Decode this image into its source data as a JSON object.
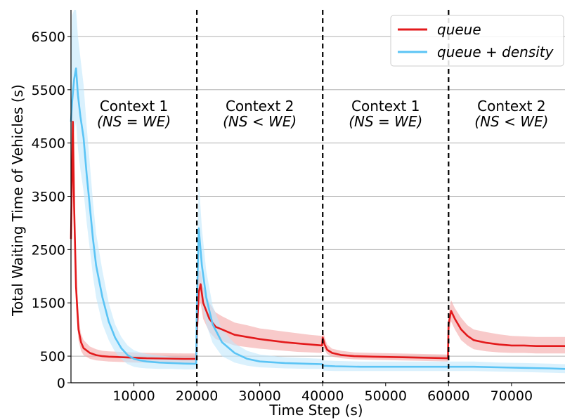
{
  "chart_data": {
    "type": "line",
    "xlabel": "Time Step (s)",
    "ylabel": "Total Waiting Time of Vehicles (s)",
    "xlim": [
      0,
      78500
    ],
    "ylim": [
      0,
      7000
    ],
    "x_ticks": [
      10000,
      20000,
      30000,
      40000,
      50000,
      60000,
      70000
    ],
    "y_ticks": [
      0,
      500,
      1500,
      2500,
      3500,
      4500,
      5500,
      6500
    ],
    "grid": "horizontal",
    "legend_position": "top-right",
    "context_boundaries": [
      20000,
      40000,
      60000
    ],
    "contexts": [
      {
        "name": "Context 1",
        "relation": "(NS = WE)",
        "x_center": 10000
      },
      {
        "name": "Context 2",
        "relation": "(NS < WE)",
        "x_center": 30000
      },
      {
        "name": "Context 1",
        "relation": "(NS = WE)",
        "x_center": 50000
      },
      {
        "name": "Context 2",
        "relation": "(NS < WE)",
        "x_center": 70000
      }
    ],
    "series": [
      {
        "name": "queue",
        "color": "#e31a1c",
        "band_color": "#f4a6a6",
        "x": [
          0,
          300,
          500,
          800,
          1200,
          1600,
          2000,
          3000,
          4000,
          5000,
          6000,
          8000,
          10000,
          12000,
          15000,
          18000,
          19900,
          20000,
          20300,
          20600,
          21000,
          22000,
          23000,
          24000,
          26000,
          28000,
          30000,
          32000,
          34000,
          36000,
          38000,
          39900,
          40000,
          40300,
          40700,
          41500,
          43000,
          45000,
          48000,
          52000,
          56000,
          59900,
          60000,
          60400,
          61000,
          62000,
          63000,
          64000,
          66000,
          68000,
          70000,
          72000,
          74000,
          76000,
          78500
        ],
        "values": [
          2700,
          4900,
          3300,
          1800,
          1000,
          760,
          650,
          560,
          520,
          500,
          490,
          480,
          470,
          460,
          455,
          450,
          450,
          900,
          1700,
          1850,
          1500,
          1200,
          1050,
          1000,
          900,
          860,
          820,
          790,
          760,
          740,
          720,
          700,
          850,
          720,
          620,
          560,
          520,
          500,
          490,
          480,
          470,
          460,
          1100,
          1350,
          1200,
          1000,
          880,
          800,
          750,
          720,
          700,
          700,
          690,
          690,
          690
        ],
        "band_low": [
          2000,
          4000,
          2700,
          1400,
          800,
          600,
          520,
          450,
          420,
          410,
          400,
          390,
          380,
          380,
          375,
          370,
          370,
          600,
          1400,
          1500,
          1200,
          950,
          820,
          780,
          700,
          670,
          640,
          620,
          600,
          580,
          570,
          560,
          700,
          620,
          540,
          490,
          460,
          440,
          430,
          420,
          410,
          400,
          900,
          1150,
          1000,
          800,
          700,
          630,
          590,
          570,
          560,
          560,
          550,
          550,
          550
        ],
        "band_high": [
          3400,
          5300,
          4000,
          2200,
          1200,
          920,
          800,
          680,
          630,
          600,
          590,
          580,
          570,
          560,
          555,
          550,
          550,
          1200,
          2100,
          2100,
          1800,
          1500,
          1320,
          1250,
          1130,
          1080,
          1020,
          990,
          960,
          930,
          900,
          880,
          1000,
          860,
          720,
          640,
          600,
          570,
          560,
          550,
          540,
          530,
          1300,
          1550,
          1400,
          1220,
          1080,
          1000,
          950,
          910,
          880,
          870,
          860,
          860,
          860
        ]
      },
      {
        "name": "queue + density",
        "color": "#5bc4f5",
        "band_color": "#c2e8fb",
        "x": [
          0,
          200,
          500,
          800,
          1100,
          1500,
          2000,
          2500,
          3000,
          3500,
          4000,
          5000,
          6000,
          7000,
          8000,
          9000,
          10000,
          11000,
          12000,
          14000,
          16000,
          18000,
          19900,
          20000,
          20300,
          20800,
          21500,
          22500,
          24000,
          26000,
          28000,
          30000,
          34000,
          38000,
          39900,
          40000,
          42000,
          46000,
          50000,
          55000,
          59900,
          60000,
          64000,
          68000,
          72000,
          76000,
          78500
        ],
        "values": [
          4900,
          5300,
          5700,
          5900,
          5400,
          5000,
          4600,
          3900,
          3300,
          2700,
          2200,
          1600,
          1150,
          850,
          650,
          520,
          450,
          420,
          400,
          380,
          370,
          360,
          355,
          1400,
          2900,
          2200,
          1600,
          1100,
          760,
          560,
          450,
          400,
          370,
          355,
          350,
          320,
          310,
          300,
          300,
          300,
          300,
          300,
          300,
          290,
          280,
          270,
          260
        ],
        "band_low": [
          3500,
          4300,
          4700,
          4900,
          4400,
          4000,
          3600,
          3000,
          2500,
          2000,
          1600,
          1100,
          800,
          580,
          440,
          350,
          300,
          280,
          270,
          260,
          260,
          250,
          250,
          800,
          2000,
          1500,
          1100,
          750,
          500,
          380,
          320,
          290,
          270,
          260,
          260,
          230,
          220,
          220,
          220,
          220,
          220,
          220,
          220,
          210,
          200,
          190,
          180
        ],
        "band_high": [
          6200,
          6900,
          7000,
          7000,
          6500,
          6100,
          5600,
          4800,
          4100,
          3400,
          2800,
          2100,
          1500,
          1100,
          860,
          700,
          610,
          570,
          540,
          510,
          490,
          480,
          470,
          2000,
          3800,
          2900,
          2100,
          1450,
          1000,
          740,
          600,
          530,
          480,
          460,
          450,
          420,
          410,
          400,
          400,
          400,
          400,
          400,
          400,
          380,
          370,
          360,
          350
        ]
      }
    ]
  }
}
